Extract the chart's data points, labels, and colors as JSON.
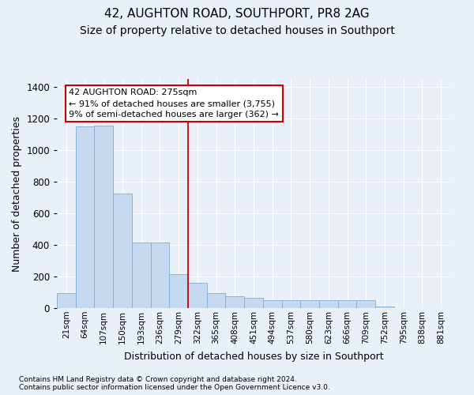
{
  "title": "42, AUGHTON ROAD, SOUTHPORT, PR8 2AG",
  "subtitle": "Size of property relative to detached houses in Southport",
  "xlabel": "Distribution of detached houses by size in Southport",
  "ylabel": "Number of detached properties",
  "categories": [
    "21sqm",
    "64sqm",
    "107sqm",
    "150sqm",
    "193sqm",
    "236sqm",
    "279sqm",
    "322sqm",
    "365sqm",
    "408sqm",
    "451sqm",
    "494sqm",
    "537sqm",
    "580sqm",
    "623sqm",
    "666sqm",
    "709sqm",
    "752sqm",
    "795sqm",
    "838sqm",
    "881sqm"
  ],
  "values": [
    95,
    1150,
    1155,
    725,
    415,
    415,
    215,
    160,
    95,
    75,
    65,
    50,
    48,
    48,
    48,
    48,
    48,
    10,
    0,
    0,
    0
  ],
  "bar_color": "#c5d9f0",
  "bar_edge_color": "#7bafd4",
  "vline_color": "#cc0000",
  "vline_idx": 6,
  "annotation_line1": "42 AUGHTON ROAD: 275sqm",
  "annotation_line2": "← 91% of detached houses are smaller (3,755)",
  "annotation_line3": "9% of semi-detached houses are larger (362) →",
  "annotation_box_color": "#ffffff",
  "annotation_box_edge": "#cc0000",
  "footnote": "Contains HM Land Registry data © Crown copyright and database right 2024.\nContains public sector information licensed under the Open Government Licence v3.0.",
  "ylim": [
    0,
    1450
  ],
  "background_color": "#eaf0f8",
  "grid_color": "#ffffff",
  "title_fontsize": 11,
  "subtitle_fontsize": 10,
  "axis_label_fontsize": 9,
  "tick_fontsize": 7.5,
  "footnote_fontsize": 6.5,
  "annotation_fontsize": 8
}
